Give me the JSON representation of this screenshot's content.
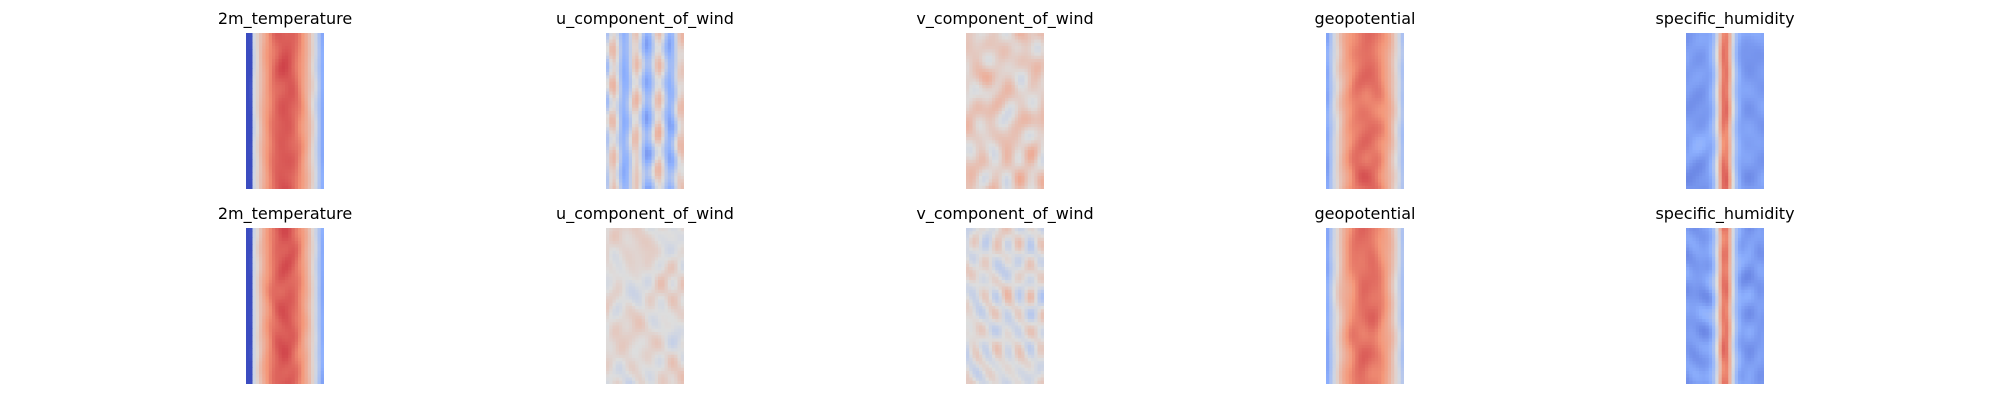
{
  "chart_data": [
    {
      "type": "heatmap",
      "layout": "grid-2x5",
      "colormap": "coolwarm",
      "axes": "off",
      "colorbar": "none",
      "rows": [
        {
          "panels": [
            {
              "title": "2m_temperature",
              "pattern": "temperature"
            },
            {
              "title": "u_component_of_wind",
              "pattern": "u_wind"
            },
            {
              "title": "v_component_of_wind",
              "pattern": "v_wind"
            },
            {
              "title": "geopotential",
              "pattern": "geopotential"
            },
            {
              "title": "specific_humidity",
              "pattern": "humidity"
            }
          ]
        },
        {
          "panels": [
            {
              "title": "2m_temperature",
              "pattern": "temperature"
            },
            {
              "title": "u_component_of_wind",
              "pattern": "u_wind_faint"
            },
            {
              "title": "v_component_of_wind",
              "pattern": "v_wind_faint"
            },
            {
              "title": "geopotential",
              "pattern": "geopotential"
            },
            {
              "title": "specific_humidity",
              "pattern": "humidity"
            }
          ]
        }
      ]
    }
  ]
}
